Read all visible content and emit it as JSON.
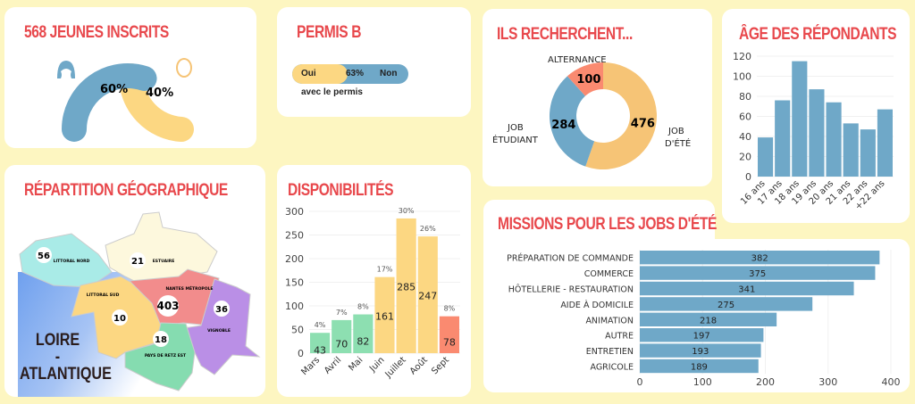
{
  "colors": {
    "background": "#fdf6c1",
    "title": "#e8484c",
    "blue": "#6fa8c8",
    "yellow": "#fcd782",
    "orange": "#f6c476",
    "green": "#8ddfb1",
    "red": "#fa8a70",
    "lavender": "#ba8fe6",
    "mint": "#a9ebe7",
    "cream": "#fdf8dd",
    "pink": "#f28c8c",
    "teal": "#85dcb0"
  },
  "inscrits": {
    "title": "568 JEUNES INSCRITS",
    "female_pct": "60%",
    "male_pct": "40%",
    "female_value": 60,
    "male_value": 40,
    "female_icon": "woman-icon",
    "male_icon": "man-icon"
  },
  "permis": {
    "title": "PERMIS B",
    "yes": "Oui",
    "pct": "63%",
    "no": "Non",
    "value": 63,
    "caption": "avec le permis"
  },
  "recherche": {
    "title": "ILS RECHERCHENT...",
    "labels": {
      "alternance": "ALTERNANCE",
      "job_etudiant_1": "JOB",
      "job_etudiant_2": "ÉTUDIANT",
      "job_ete_1": "JOB",
      "job_ete_2": "D'ÉTÉ"
    }
  },
  "geo": {
    "title": "RÉPARTITION GÉOGRAPHIQUE",
    "department_1": "LOIRE",
    "department_dash": "-",
    "department_2": "ATLANTIQUE",
    "zones": [
      {
        "name": "LITTORAL NORD",
        "value": "56"
      },
      {
        "name": "ESTUAIRE",
        "value": "21"
      },
      {
        "name": "LITTORAL SUD",
        "value": "10"
      },
      {
        "name": "NANTES MÉTROPOLE",
        "value": "403"
      },
      {
        "name": "VIGNOBLE",
        "value": "36"
      },
      {
        "name": "PAYS DE RETZ EST",
        "value": "18"
      }
    ]
  },
  "dispo": {
    "title": "DISPONIBILITÉS"
  },
  "age": {
    "title": "ÂGE DES RÉPONDANTS"
  },
  "missions": {
    "title": "MISSIONS POUR LES JOBS D'ÉTÉ"
  },
  "chart_data": [
    {
      "type": "pie",
      "variant": "donut",
      "categories": [
        "JOB D'ÉTÉ",
        "JOB ÉTUDIANT",
        "ALTERNANCE"
      ],
      "values": [
        476,
        284,
        100
      ],
      "colors": [
        "#f6c476",
        "#6fa8c8",
        "#fa8a70"
      ]
    },
    {
      "type": "bar",
      "title": "DISPONIBILITÉS",
      "categories": [
        "Mars",
        "Avril",
        "Mai",
        "Juin",
        "Juillet",
        "Août",
        "Sept"
      ],
      "values": [
        43,
        70,
        82,
        161,
        285,
        247,
        78
      ],
      "percent_labels": [
        "4%",
        "7%",
        "8%",
        "17%",
        "30%",
        "26%",
        "8%"
      ],
      "colors": [
        "#8ddfb1",
        "#8ddfb1",
        "#8ddfb1",
        "#fcd782",
        "#fcd782",
        "#fcd782",
        "#fa8a70"
      ],
      "ylim": [
        0,
        300
      ],
      "yticks": [
        "0",
        "50",
        "100",
        "150",
        "200",
        "250",
        "300"
      ],
      "grid": true
    },
    {
      "type": "bar",
      "title": "ÂGE DES RÉPONDANTS",
      "categories": [
        "16 ans",
        "17 ans",
        "18 ans",
        "19 ans",
        "20 ans",
        "21 ans",
        "22 ans",
        "+22 ans"
      ],
      "values": [
        39,
        76,
        115,
        87,
        74,
        53,
        47,
        67
      ],
      "ylim": [
        0,
        120
      ],
      "yticks": [
        "0",
        "20",
        "40",
        "60",
        "80",
        "100",
        "120"
      ],
      "grid": true,
      "color": "#6fa8c8"
    },
    {
      "type": "bar",
      "orientation": "horizontal",
      "title": "MISSIONS POUR LES JOBS D'ÉTÉ",
      "categories": [
        "PRÉPARATION DE COMMANDE",
        "COMMERCE",
        "HÔTELLERIE - RESTAURATION",
        "AIDE À DOMICILE",
        "ANIMATION",
        "AUTRE",
        "ENTRETIEN",
        "AGRICOLE"
      ],
      "values": [
        382,
        375,
        341,
        275,
        218,
        197,
        193,
        189
      ],
      "xlim": [
        0,
        400
      ],
      "xticks": [
        "0",
        "100",
        "200",
        "300",
        "400"
      ],
      "grid": true,
      "color": "#6fa8c8"
    }
  ]
}
